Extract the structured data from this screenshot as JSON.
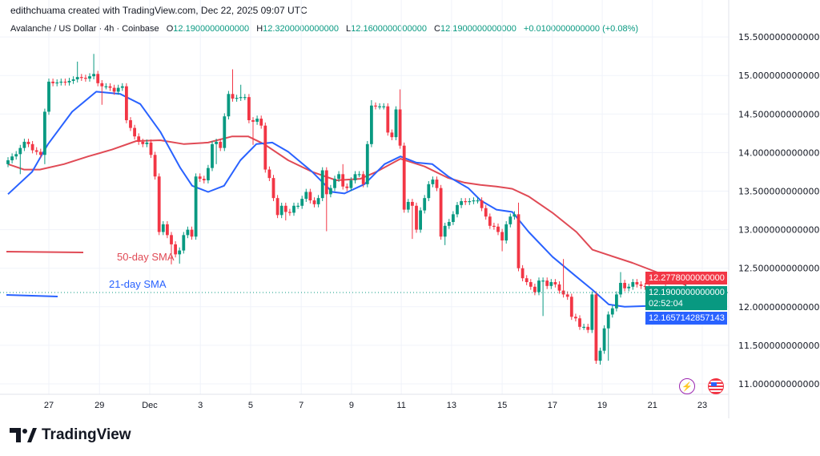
{
  "credit": "edithchuama created with TradingView.com, Dec 22, 2025 09:07 UTC",
  "legend": {
    "symbol": "Avalanche / US Dollar · 4h · Coinbase",
    "o_label": "O",
    "o": "12.1900000000000",
    "h_label": "H",
    "h": "12.3200000000000",
    "l_label": "L",
    "l": "12.1600000000000",
    "c_label": "C",
    "c": "12.1900000000000",
    "change": "+0.0100000000000 (+0.08%)"
  },
  "price_labels": {
    "sma50": "12.2778000000000",
    "last": "12.1900000000000",
    "countdown": "02:52:04",
    "sma21": "12.1657142857143"
  },
  "annotations": {
    "sma50_label": "50-day SMA",
    "sma21_label": "21-day SMA"
  },
  "icons": {
    "left": "lightning-icon",
    "right": "us-flag-icon"
  },
  "brand": "TradingView",
  "colors": {
    "up": "#089981",
    "down": "#f23645",
    "sma21": "#2962ff",
    "sma50": "#e04a55",
    "grid": "#f0f3fa",
    "last_price": "#089981"
  },
  "chart_data": {
    "type": "candlestick",
    "interval": "4h",
    "ylim": [
      10.75,
      15.75
    ],
    "y_ticks": [
      "11.0000000000000",
      "11.5000000000000",
      "12.0000000000000",
      "12.5000000000000",
      "13.0000000000000",
      "13.5000000000000",
      "14.0000000000000",
      "14.5000000000000",
      "15.0000000000000",
      "15.5000000000000"
    ],
    "y_tick_values": [
      11.0,
      11.5,
      12.0,
      12.5,
      13.0,
      13.5,
      14.0,
      14.5,
      15.0,
      15.5
    ],
    "x_ticks": [
      "27",
      "29",
      "Dec",
      "3",
      "5",
      "7",
      "9",
      "11",
      "13",
      "15",
      "17",
      "19",
      "21",
      "23"
    ],
    "x_tick_bars": [
      10,
      22.4,
      34.7,
      47.1,
      59.4,
      71.8,
      84.1,
      96.3,
      108.6,
      121,
      133.3,
      145.5,
      157.8,
      170
    ],
    "grid": true,
    "first_open": 13.85,
    "close": [
      13.9,
      13.95,
      13.98,
      14.06,
      14.14,
      14.11,
      14.03,
      14.01,
      13.97,
      14.53,
      14.92,
      14.9,
      14.91,
      14.92,
      14.91,
      14.93,
      14.95,
      14.98,
      14.97,
      14.96,
      14.99,
      15.02,
      14.9,
      14.86,
      14.86,
      14.84,
      14.79,
      14.84,
      14.86,
      14.42,
      14.32,
      14.21,
      14.14,
      14.11,
      14.13,
      13.97,
      13.69,
      12.97,
      13.07,
      12.93,
      12.81,
      12.68,
      12.73,
      12.93,
      13.0,
      12.91,
      13.69,
      13.66,
      13.64,
      13.8,
      14.11,
      14.14,
      14.06,
      14.47,
      14.76,
      14.7,
      14.71,
      14.72,
      14.72,
      14.42,
      14.4,
      14.44,
      14.35,
      13.78,
      13.67,
      13.41,
      13.19,
      13.31,
      13.23,
      13.22,
      13.31,
      13.31,
      13.4,
      13.49,
      13.38,
      13.33,
      13.41,
      13.77,
      13.46,
      13.54,
      13.66,
      13.72,
      13.56,
      13.54,
      13.64,
      13.72,
      13.72,
      13.59,
      14.11,
      14.61,
      14.6,
      14.6,
      14.6,
      14.26,
      14.2,
      14.56,
      14.09,
      13.26,
      13.36,
      13.31,
      13.0,
      13.25,
      13.41,
      13.59,
      13.65,
      13.54,
      12.91,
      13.05,
      13.1,
      13.2,
      13.32,
      13.37,
      13.36,
      13.37,
      13.38,
      13.38,
      13.28,
      13.17,
      13.05,
      13.04,
      12.97,
      12.86,
      13.07,
      13.17,
      13.2,
      12.5,
      12.37,
      12.32,
      12.26,
      12.19,
      12.34,
      12.34,
      12.27,
      12.32,
      12.29,
      12.21,
      12.16,
      12.13,
      11.87,
      11.85,
      11.74,
      11.74,
      11.7,
      12.16,
      11.3,
      11.43,
      11.72,
      11.9,
      11.98,
      12.16,
      12.31,
      12.24,
      12.26,
      12.32,
      12.29,
      12.27,
      12.26,
      12.21,
      12.19,
      12.1,
      12.22,
      12.1,
      12.12,
      12.14,
      12.19,
      12.19,
      12.19
    ],
    "wick_extremes": [
      {
        "bar": 3,
        "low": 13.72
      },
      {
        "bar": 9,
        "low": 13.85
      },
      {
        "bar": 17,
        "high": 15.18
      },
      {
        "bar": 21,
        "high": 15.28
      },
      {
        "bar": 23,
        "low": 14.62
      },
      {
        "bar": 40,
        "low": 12.55
      },
      {
        "bar": 42,
        "low": 12.56
      },
      {
        "bar": 51,
        "low": 13.85
      },
      {
        "bar": 55,
        "high": 15.08
      },
      {
        "bar": 57,
        "high": 14.88
      },
      {
        "bar": 60,
        "low": 14.1
      },
      {
        "bar": 68,
        "low": 13.12
      },
      {
        "bar": 78,
        "low": 12.98
      },
      {
        "bar": 82,
        "high": 13.85
      },
      {
        "bar": 89,
        "high": 14.68
      },
      {
        "bar": 96,
        "high": 14.82
      },
      {
        "bar": 99,
        "low": 12.88
      },
      {
        "bar": 107,
        "low": 12.8
      },
      {
        "bar": 121,
        "low": 12.72
      },
      {
        "bar": 125,
        "high": 13.35
      },
      {
        "bar": 131,
        "low": 11.88
      },
      {
        "bar": 136,
        "high": 12.62
      },
      {
        "bar": 145,
        "low": 11.25
      },
      {
        "bar": 147,
        "low": 11.3
      },
      {
        "bar": 150,
        "high": 12.45
      },
      {
        "bar": 161,
        "high": 12.4
      },
      {
        "bar": 160,
        "low": 11.97
      },
      {
        "bar": 166,
        "high": 12.32
      }
    ],
    "sma21": [
      [
        0,
        13.46
      ],
      [
        5.9,
        13.75
      ],
      [
        9.8,
        14.11
      ],
      [
        15.7,
        14.53
      ],
      [
        21.6,
        14.79
      ],
      [
        27.5,
        14.76
      ],
      [
        32.4,
        14.63
      ],
      [
        37.3,
        14.27
      ],
      [
        42.2,
        13.8
      ],
      [
        45.1,
        13.57
      ],
      [
        49,
        13.49
      ],
      [
        52.9,
        13.57
      ],
      [
        56.9,
        13.9
      ],
      [
        60.8,
        14.11
      ],
      [
        64.7,
        14.13
      ],
      [
        68.6,
        14.01
      ],
      [
        74.5,
        13.75
      ],
      [
        79.4,
        13.49
      ],
      [
        82.4,
        13.47
      ],
      [
        87.3,
        13.59
      ],
      [
        92.2,
        13.85
      ],
      [
        96.1,
        13.95
      ],
      [
        100,
        13.87
      ],
      [
        103.9,
        13.85
      ],
      [
        107.8,
        13.69
      ],
      [
        112.7,
        13.54
      ],
      [
        115.7,
        13.38
      ],
      [
        119.6,
        13.26
      ],
      [
        123.5,
        13.23
      ],
      [
        127.5,
        12.97
      ],
      [
        133.3,
        12.65
      ],
      [
        139.2,
        12.39
      ],
      [
        143.1,
        12.22
      ],
      [
        147.1,
        12.03
      ],
      [
        151,
        12.0
      ],
      [
        156.9,
        12.01
      ],
      [
        160.8,
        12.05
      ],
      [
        163.7,
        12.09
      ],
      [
        166,
        12.1657
      ]
    ],
    "sma50": [
      [
        0,
        13.85
      ],
      [
        3.9,
        13.78
      ],
      [
        7.8,
        13.78
      ],
      [
        13.7,
        13.85
      ],
      [
        19.6,
        13.95
      ],
      [
        25.5,
        14.04
      ],
      [
        31.4,
        14.15
      ],
      [
        37.3,
        14.16
      ],
      [
        43.1,
        14.11
      ],
      [
        49,
        14.13
      ],
      [
        54.9,
        14.21
      ],
      [
        58.8,
        14.21
      ],
      [
        62.7,
        14.11
      ],
      [
        68.6,
        13.9
      ],
      [
        74.5,
        13.75
      ],
      [
        80.4,
        13.64
      ],
      [
        86.3,
        13.66
      ],
      [
        90.2,
        13.75
      ],
      [
        96.1,
        13.92
      ],
      [
        102,
        13.82
      ],
      [
        107.8,
        13.67
      ],
      [
        111.8,
        13.61
      ],
      [
        115.7,
        13.58
      ],
      [
        119.6,
        13.56
      ],
      [
        123.5,
        13.53
      ],
      [
        127.5,
        13.43
      ],
      [
        133.3,
        13.22
      ],
      [
        139.2,
        12.97
      ],
      [
        143.1,
        12.74
      ],
      [
        147.1,
        12.67
      ],
      [
        152.9,
        12.57
      ],
      [
        158.8,
        12.45
      ],
      [
        163.7,
        12.34
      ],
      [
        166,
        12.2778
      ]
    ]
  }
}
